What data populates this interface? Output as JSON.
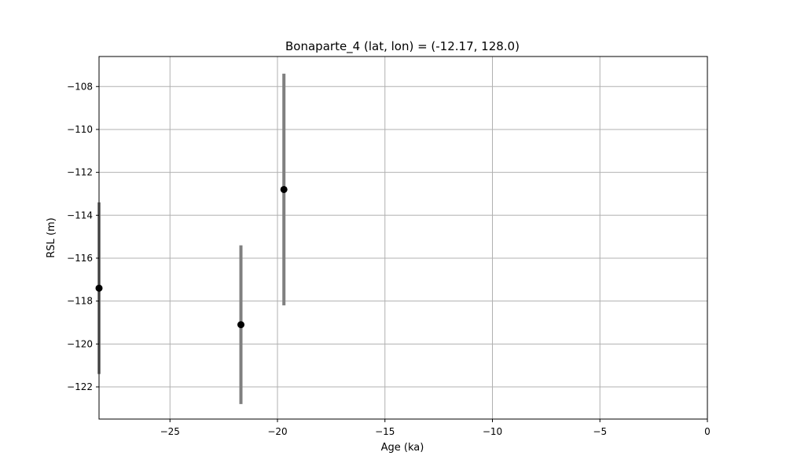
{
  "chart_data": {
    "type": "scatter",
    "title": "Bonaparte_4 (lat, lon) = (-12.17, 128.0)",
    "xlabel": "Age (ka)",
    "ylabel": "RSL (m)",
    "xlim": [
      -28.3,
      0
    ],
    "ylim": [
      -123.5,
      -106.6
    ],
    "xticks": [
      -25,
      -20,
      -15,
      -10,
      -5,
      0
    ],
    "xtick_labels": [
      "−25",
      "−20",
      "−15",
      "−10",
      "−5",
      "0"
    ],
    "yticks": [
      -122,
      -120,
      -118,
      -116,
      -114,
      -112,
      -110,
      -108
    ],
    "ytick_labels": [
      "−122",
      "−120",
      "−118",
      "−116",
      "−114",
      "−112",
      "−110",
      "−108"
    ],
    "grid": true,
    "points": [
      {
        "x": -28.3,
        "y": -117.4,
        "ylow": -121.4,
        "yhigh": -113.4
      },
      {
        "x": -21.7,
        "y": -119.1,
        "ylow": -122.8,
        "yhigh": -115.4
      },
      {
        "x": -19.7,
        "y": -112.8,
        "ylow": -118.2,
        "yhigh": -107.4
      }
    ],
    "colors": {
      "marker": "#000000",
      "errorbar": "#808080",
      "grid": "#b0b0b0",
      "axes": "#000000"
    }
  }
}
